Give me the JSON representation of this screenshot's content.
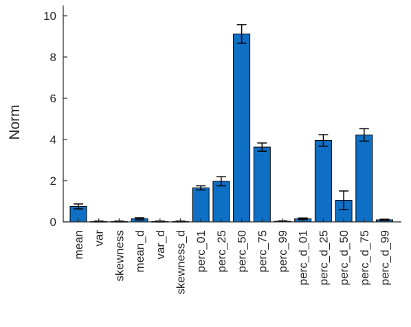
{
  "chart_data": {
    "type": "bar",
    "title": "",
    "xlabel": "",
    "ylabel": "Norm",
    "ylim": [
      0,
      10.5
    ],
    "yticks": [
      0,
      2,
      4,
      6,
      8,
      10
    ],
    "grid": false,
    "categories": [
      "mean",
      "var",
      "skewness",
      "mean_d",
      "var_d",
      "skewness_d",
      "perc_01",
      "perc_25",
      "perc_50",
      "perc_75",
      "perc_99",
      "perc_d_01",
      "perc_d_25",
      "perc_d_50",
      "perc_d_75",
      "perc_d_99"
    ],
    "values": [
      0.75,
      0.02,
      0.02,
      0.15,
      0.02,
      0.02,
      1.65,
      1.97,
      9.12,
      3.63,
      0.03,
      0.15,
      3.95,
      1.05,
      4.22,
      0.1
    ],
    "errors": [
      0.12,
      0.02,
      0.02,
      0.05,
      0.02,
      0.02,
      0.1,
      0.22,
      0.45,
      0.2,
      0.02,
      0.04,
      0.28,
      0.45,
      0.3,
      0.03
    ],
    "bar_color": "#0e6fc4"
  }
}
